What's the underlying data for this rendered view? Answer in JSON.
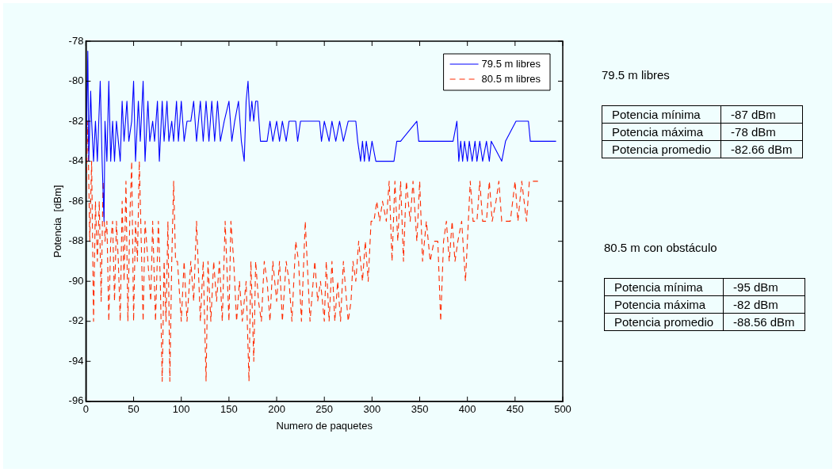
{
  "chart_data": [
    {
      "type": "line",
      "xlabel": "Numero de paquetes",
      "ylabel": "Potencia  [dBm]",
      "xlim": [
        0,
        500
      ],
      "xticks": [
        0,
        50,
        100,
        150,
        200,
        250,
        300,
        350,
        400,
        450,
        500
      ],
      "ylim": [
        -96,
        -78
      ],
      "yticks": [
        -96,
        -94,
        -92,
        -90,
        -88,
        -86,
        -84,
        -82,
        -80,
        -78
      ],
      "grid": false,
      "legend": "top right",
      "marker": "none",
      "series": [
        {
          "name": "79.5 m libres",
          "color": "#0000ff",
          "line_style": "solid",
          "x": [
            0,
            2,
            3,
            5,
            6,
            8,
            10,
            12,
            15,
            17,
            19,
            20,
            22,
            24,
            26,
            28,
            30,
            32,
            34,
            36,
            38,
            40,
            43,
            45,
            48,
            50,
            52,
            55,
            57,
            60,
            62,
            65,
            67,
            70,
            72,
            75,
            77,
            80,
            82,
            85,
            87,
            90,
            92,
            95,
            97,
            100,
            103,
            106,
            110,
            113,
            116,
            120,
            123,
            126,
            129,
            132,
            135,
            138,
            141,
            145,
            150,
            153,
            156,
            160,
            163,
            166,
            168,
            170,
            172,
            174,
            176,
            178,
            180,
            183,
            190,
            193,
            196,
            200,
            203,
            206,
            210,
            213,
            220,
            222,
            225,
            245,
            247,
            250,
            255,
            258,
            262,
            266,
            270,
            275,
            283,
            285,
            288,
            290,
            292,
            294,
            297,
            300,
            304,
            307,
            323,
            326,
            330,
            347,
            349,
            385,
            389,
            391,
            393,
            395,
            397,
            400,
            402,
            405,
            408,
            410,
            413,
            416,
            420,
            423,
            425,
            436,
            440,
            451,
            464,
            466,
            493
          ],
          "values": [
            -84,
            -78.5,
            -84,
            -80.5,
            -82,
            -84,
            -82,
            -84,
            -80,
            -84,
            -87,
            -82,
            -84,
            -80,
            -84,
            -82,
            -84,
            -82,
            -83,
            -84,
            -81,
            -83,
            -81,
            -83,
            -82,
            -80,
            -84,
            -81,
            -83,
            -80,
            -84,
            -81,
            -83,
            -82,
            -83,
            -81,
            -84,
            -81,
            -83,
            -81,
            -83,
            -82,
            -83,
            -81,
            -83,
            -81,
            -83,
            -82,
            -82,
            -81,
            -83,
            -81,
            -83,
            -81,
            -83,
            -81,
            -83,
            -81,
            -83,
            -82,
            -81,
            -83,
            -82,
            -81,
            -83,
            -84,
            -81,
            -80,
            -82,
            -81,
            -82,
            -81,
            -81,
            -83,
            -83,
            -82,
            -83,
            -82,
            -83,
            -82,
            -83,
            -82,
            -82,
            -83,
            -82,
            -82,
            -83,
            -82,
            -83,
            -82,
            -83,
            -82,
            -83,
            -82,
            -82,
            -83,
            -84,
            -83,
            -84,
            -83,
            -84,
            -83,
            -84,
            -84,
            -84,
            -83,
            -83,
            -82,
            -83,
            -83,
            -82,
            -84,
            -83,
            -84,
            -83,
            -84,
            -83,
            -84,
            -83,
            -84,
            -83,
            -84,
            -83,
            -84,
            -83,
            -84,
            -83,
            -82,
            -82,
            -83,
            -83
          ]
        },
        {
          "name": "80.5 m libres",
          "color": "#ff2a00",
          "line_style": "dashed",
          "x": [
            0,
            2,
            4,
            6,
            8,
            10,
            12,
            14,
            16,
            18,
            20,
            22,
            24,
            26,
            28,
            30,
            32,
            34,
            36,
            38,
            40,
            42,
            44,
            46,
            48,
            50,
            52,
            54,
            56,
            58,
            60,
            62,
            65,
            68,
            70,
            73,
            76,
            78,
            80,
            82,
            84,
            86,
            88,
            90,
            92,
            94,
            96,
            100,
            103,
            106,
            110,
            113,
            116,
            120,
            123,
            126,
            128,
            131,
            134,
            137,
            140,
            143,
            146,
            150,
            152,
            155,
            158,
            161,
            164,
            168,
            171,
            173,
            176,
            178,
            181,
            184,
            187,
            190,
            193,
            196,
            200,
            203,
            206,
            210,
            213,
            216,
            220,
            223,
            226,
            230,
            232,
            235,
            240,
            243,
            246,
            250,
            252,
            255,
            258,
            261,
            264,
            267,
            270,
            275,
            278,
            280,
            283,
            286,
            290,
            293,
            296,
            299,
            302,
            305,
            308,
            311,
            315,
            318,
            321,
            324,
            327,
            330,
            333,
            336,
            340,
            343,
            347,
            350,
            353,
            357,
            361,
            365,
            369,
            372,
            375,
            378,
            381,
            384,
            387,
            390,
            394,
            398,
            401,
            403,
            406,
            410,
            413,
            416,
            420,
            423,
            426,
            430,
            433,
            436,
            440,
            445,
            450,
            453,
            457,
            462,
            465,
            474
          ],
          "values": [
            -86,
            -82,
            -88,
            -84,
            -92,
            -86,
            -89,
            -86,
            -91,
            -85,
            -88,
            -87,
            -92,
            -88,
            -87,
            -91,
            -87,
            -89,
            -92,
            -86,
            -90,
            -85,
            -92,
            -87,
            -84,
            -92,
            -87,
            -89,
            -84,
            -88,
            -92,
            -87,
            -89,
            -91,
            -87,
            -92,
            -87,
            -90,
            -95,
            -89,
            -92,
            -87,
            -95,
            -89,
            -85,
            -89,
            -89,
            -92,
            -89,
            -92,
            -89,
            -91,
            -87,
            -92,
            -89,
            -95,
            -89,
            -92,
            -89,
            -91,
            -89,
            -92,
            -87,
            -92,
            -87,
            -89,
            -92,
            -90,
            -92,
            -90,
            -95,
            -89,
            -94,
            -89,
            -91,
            -92,
            -89,
            -90,
            -92,
            -89,
            -91,
            -89,
            -92,
            -89,
            -90,
            -92,
            -88,
            -89,
            -92,
            -87,
            -89,
            -92,
            -89,
            -91,
            -90,
            -92,
            -89,
            -92,
            -89,
            -92,
            -90,
            -92,
            -89,
            -92,
            -91,
            -89,
            -90,
            -88,
            -90,
            -88,
            -90,
            -87,
            -87,
            -86,
            -87,
            -86,
            -87,
            -85,
            -89,
            -85,
            -88,
            -85,
            -89,
            -85,
            -87,
            -85,
            -88,
            -85,
            -89,
            -87,
            -89,
            -88,
            -88,
            -92,
            -88,
            -87,
            -89,
            -87,
            -89,
            -88,
            -87,
            -90,
            -87,
            -85,
            -87,
            -87,
            -85,
            -87,
            -87,
            -85,
            -87,
            -86,
            -85,
            -87,
            -87,
            -87,
            -85,
            -87,
            -85,
            -87,
            -85,
            -85
          ]
        }
      ]
    },
    {
      "type": "other",
      "title": "79.5 m libres",
      "annotations": [
        "Potencia mínima",
        "-87 dBm",
        "Potencia máxima",
        "-78 dBm",
        "Potencia promedio",
        "-82.66 dBm"
      ]
    },
    {
      "type": "other",
      "title": "80.5 m con obstáculo",
      "annotations": [
        "Potencia mínima",
        "-95 dBm",
        "Potencia máxima",
        "-82 dBm",
        "Potencia promedio",
        "-88.56 dBm"
      ]
    }
  ]
}
